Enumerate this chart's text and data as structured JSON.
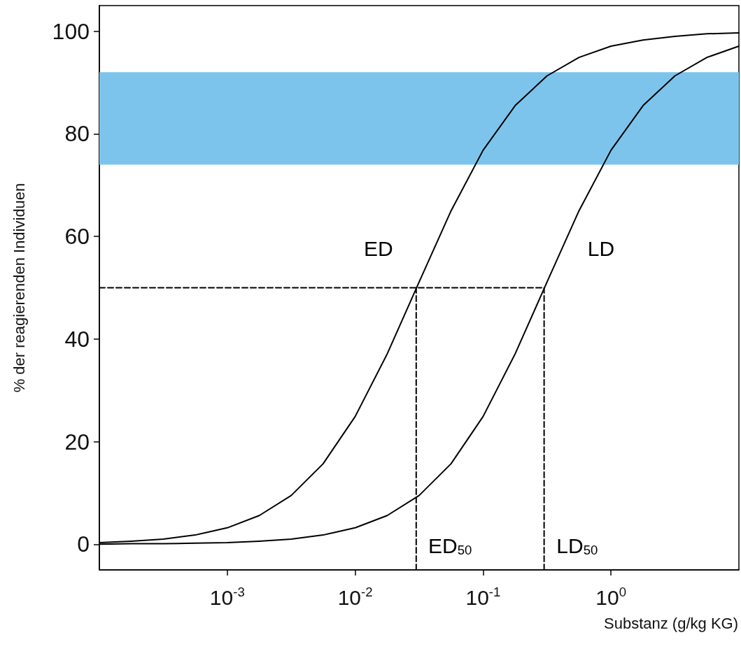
{
  "chart_data": {
    "type": "line",
    "xlabel": "Substanz (g/kg KG)",
    "ylabel": "% der reagierenden Individuen",
    "log": "x",
    "marker": "none",
    "line_style": "solid",
    "xlim": [
      0.0001,
      10
    ],
    "xticks": [
      {
        "value": 0.001,
        "label": "10$^{-3}$"
      },
      {
        "value": 0.01,
        "label": "10$^{-2}$"
      },
      {
        "value": 0.1,
        "label": "10$^{-1}$"
      },
      {
        "value": 1,
        "label": "10$^{0}$"
      }
    ],
    "ylim": [
      -5,
      105
    ],
    "yticks": [
      0,
      20,
      40,
      60,
      80,
      100
    ],
    "bands": [
      {
        "axis": "y",
        "from": 74,
        "to": 92,
        "color": "#7cc4ec"
      }
    ],
    "series": [
      {
        "color": "#000000",
        "x": [
          0.0001,
          0.000178,
          0.000316,
          0.000562,
          0.001,
          0.00178,
          0.00316,
          0.00562,
          0.01,
          0.0178,
          0.0316,
          0.0562,
          0.1,
          0.178,
          0.316,
          0.562,
          1,
          1.78,
          3.16,
          5.62,
          10
        ],
        "values": [
          0.3,
          0.6,
          1.0,
          1.8,
          3.2,
          5.6,
          9.5,
          15.7,
          24.9,
          37.1,
          51.1,
          65.0,
          76.8,
          85.5,
          91.3,
          94.9,
          97.1,
          98.3,
          99.0,
          99.5,
          99.7
        ]
      },
      {
        "color": "#000000",
        "x": [
          0.0001,
          0.000178,
          0.000316,
          0.000562,
          0.001,
          0.00178,
          0.00316,
          0.00562,
          0.01,
          0.0178,
          0.0316,
          0.0562,
          0.1,
          0.178,
          0.316,
          0.562,
          1,
          1.78,
          3.16,
          5.62,
          10
        ],
        "values": [
          0.0,
          0.1,
          0.1,
          0.2,
          0.3,
          0.6,
          1.0,
          1.8,
          3.2,
          5.6,
          9.5,
          15.7,
          24.9,
          37.1,
          51.1,
          65.0,
          76.8,
          85.5,
          91.3,
          94.9,
          97.1
        ]
      },
      {
        "color": "#000000",
        "line_style": "dashed",
        "x": [
          0.0001,
          0.3
        ],
        "values": [
          50,
          50
        ]
      },
      {
        "color": "#000000",
        "line_style": "dashed",
        "x": [
          0.03,
          0.03
        ],
        "values": [
          -5,
          50
        ]
      },
      {
        "color": "#000000",
        "line_style": "dashed",
        "x": [
          0.3,
          0.3
        ],
        "values": [
          -5,
          50
        ]
      }
    ],
    "annotations": [
      "ED",
      "LD",
      "ED$_{50}$",
      "LD$_{50}$"
    ]
  }
}
